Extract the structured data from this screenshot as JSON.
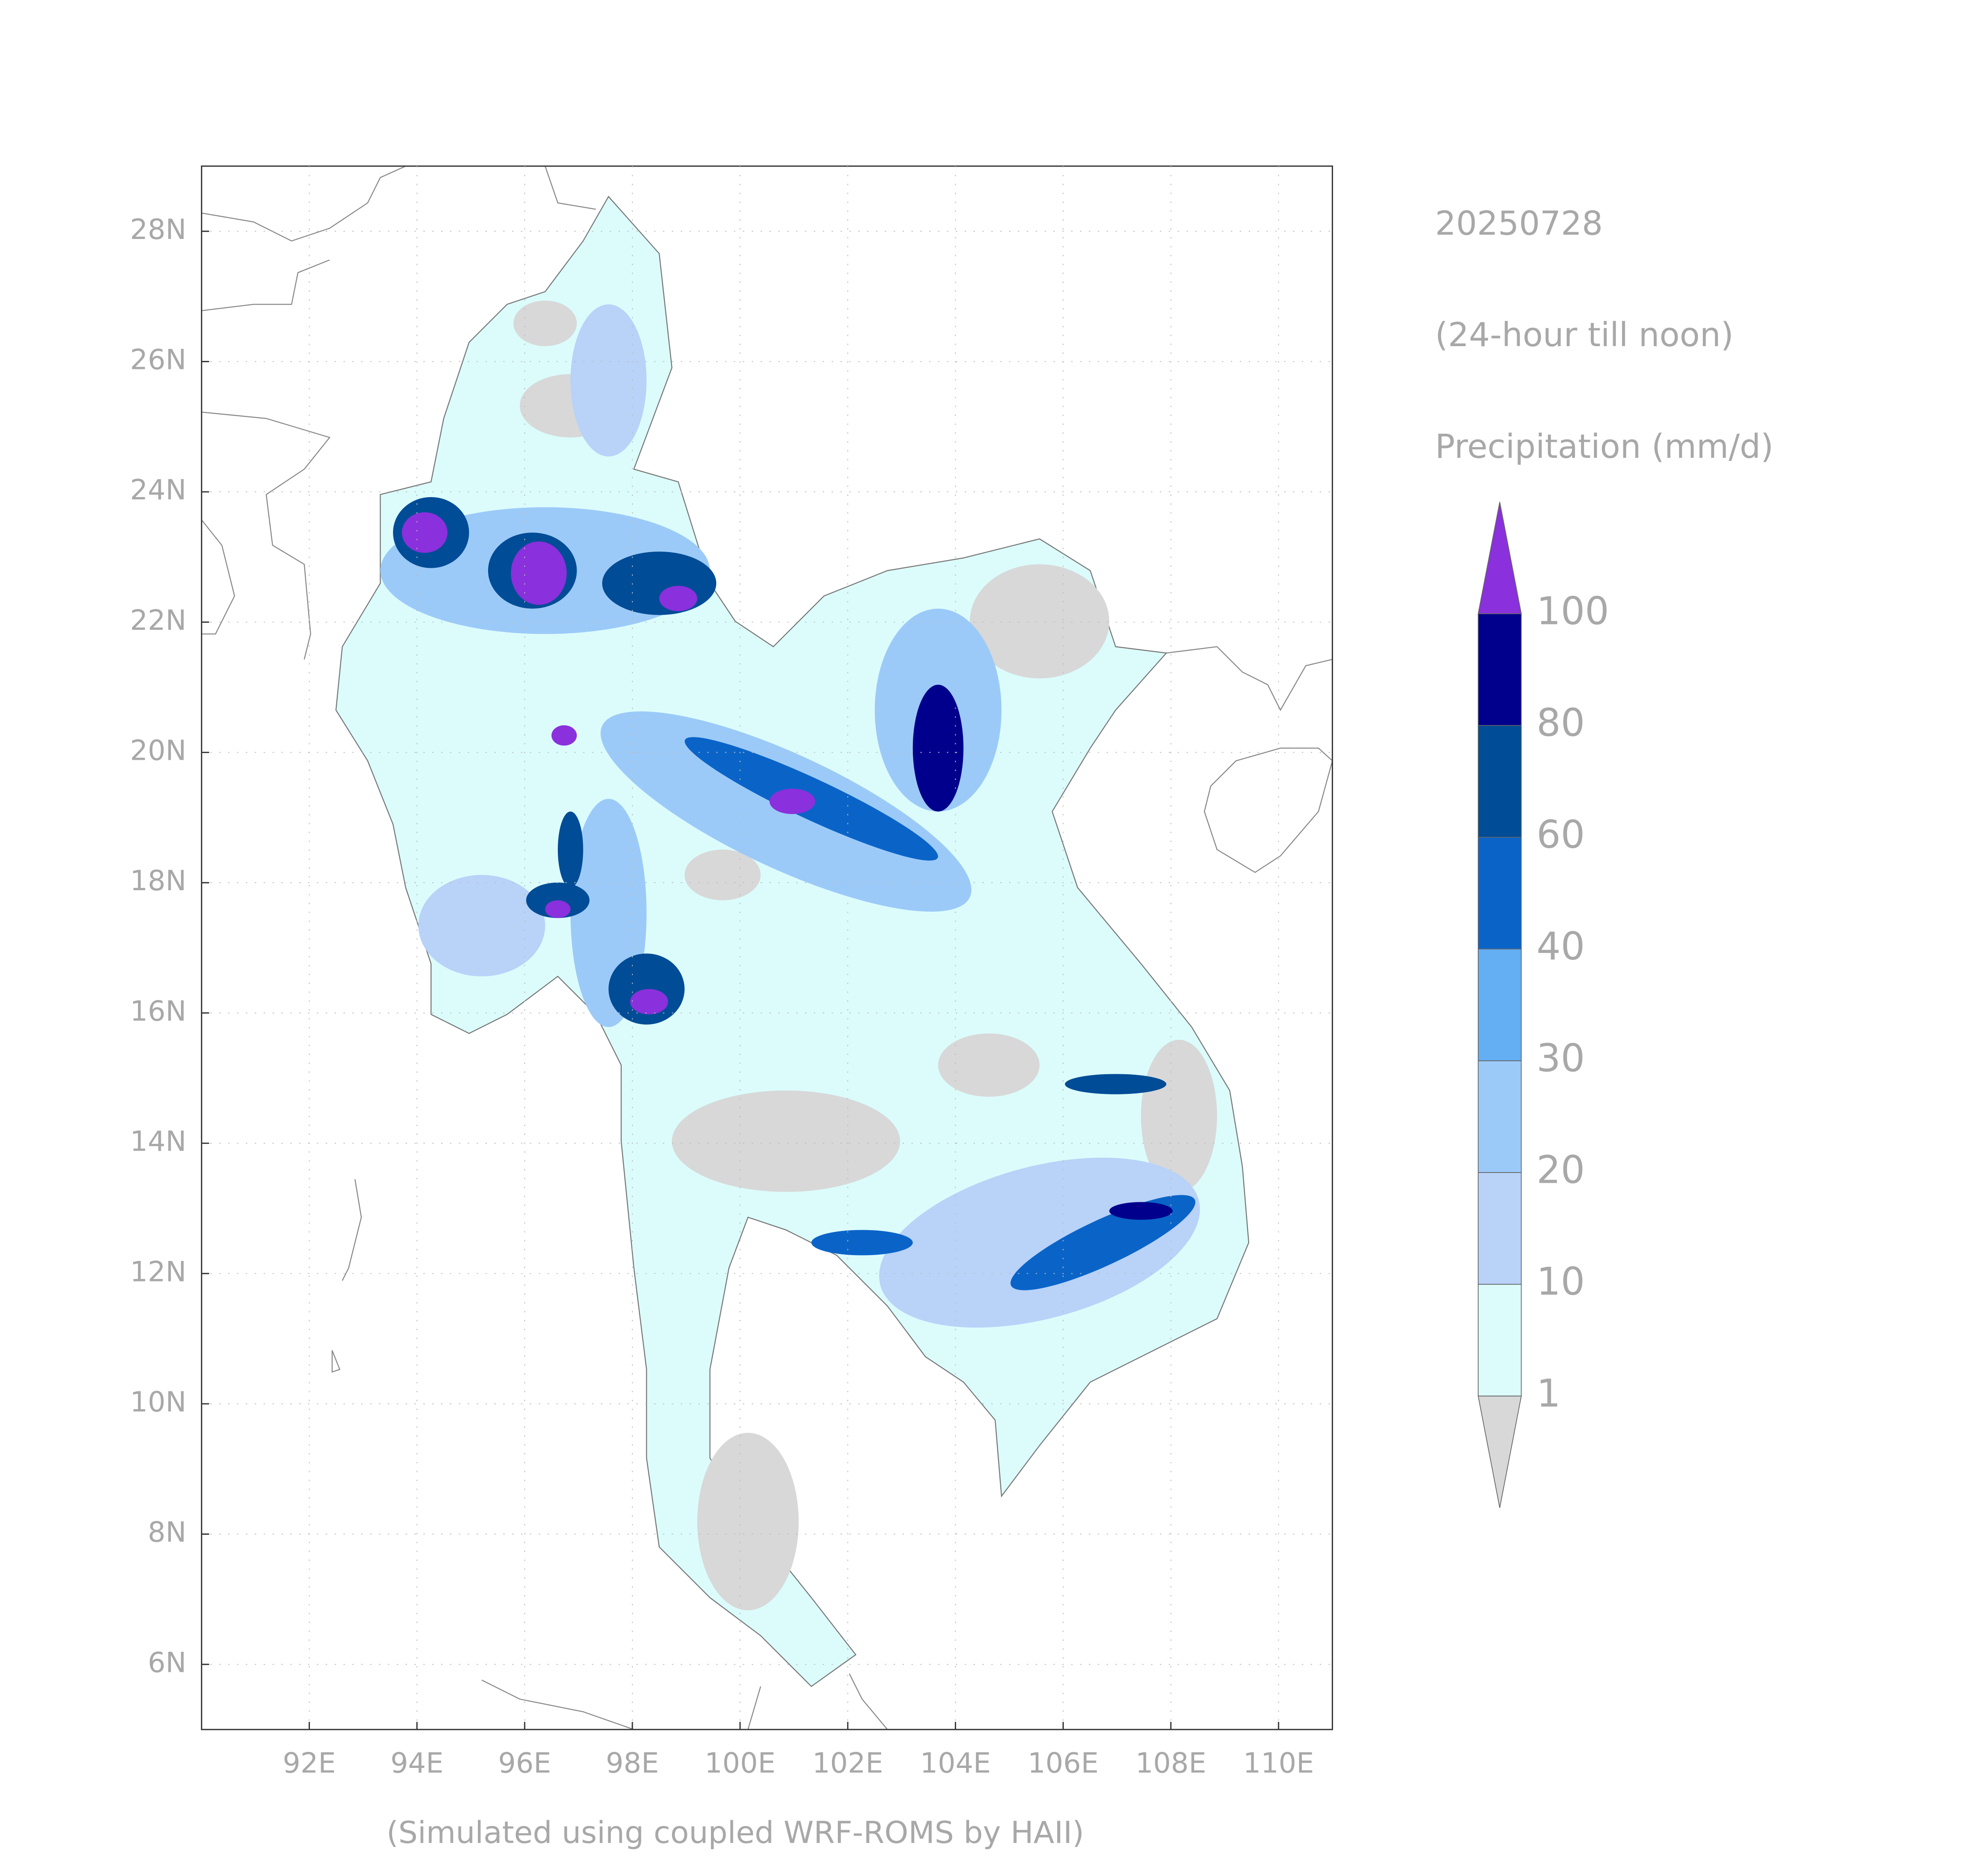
{
  "map": {
    "title": "20250728",
    "subtitle": "(24-hour till noon)",
    "variable": "Precipitation (mm/d)",
    "footnote": "(Simulated using coupled WRF-ROMS by HAII)",
    "xlim": [
      90,
      111
    ],
    "ylim": [
      5,
      29
    ],
    "xticks": [
      {
        "value": 92,
        "label": "92E"
      },
      {
        "value": 94,
        "label": "94E"
      },
      {
        "value": 96,
        "label": "96E"
      },
      {
        "value": 98,
        "label": "98E"
      },
      {
        "value": 100,
        "label": "100E"
      },
      {
        "value": 102,
        "label": "102E"
      },
      {
        "value": 104,
        "label": "104E"
      },
      {
        "value": 106,
        "label": "106E"
      },
      {
        "value": 108,
        "label": "108E"
      },
      {
        "value": 110,
        "label": "110E"
      }
    ],
    "yticks": [
      {
        "value": 6,
        "label": "6N"
      },
      {
        "value": 8,
        "label": "8N"
      },
      {
        "value": 10,
        "label": "10N"
      },
      {
        "value": 12,
        "label": "12N"
      },
      {
        "value": 14,
        "label": "14N"
      },
      {
        "value": 16,
        "label": "16N"
      },
      {
        "value": 18,
        "label": "18N"
      },
      {
        "value": 20,
        "label": "20N"
      },
      {
        "value": 22,
        "label": "22N"
      },
      {
        "value": 24,
        "label": "24N"
      },
      {
        "value": 26,
        "label": "26N"
      },
      {
        "value": 28,
        "label": "28N"
      }
    ],
    "grid": true,
    "colorbar": {
      "levels": [
        1,
        10,
        20,
        30,
        40,
        60,
        80,
        100
      ],
      "colors": [
        "#dcfcfc",
        "#b8d2f8",
        "#9ccaf8",
        "#64aef4",
        "#0a64c8",
        "#004c96",
        "#00008c"
      ],
      "under_color": "#d8d8d8",
      "over_color": "#8a30dc"
    }
  }
}
